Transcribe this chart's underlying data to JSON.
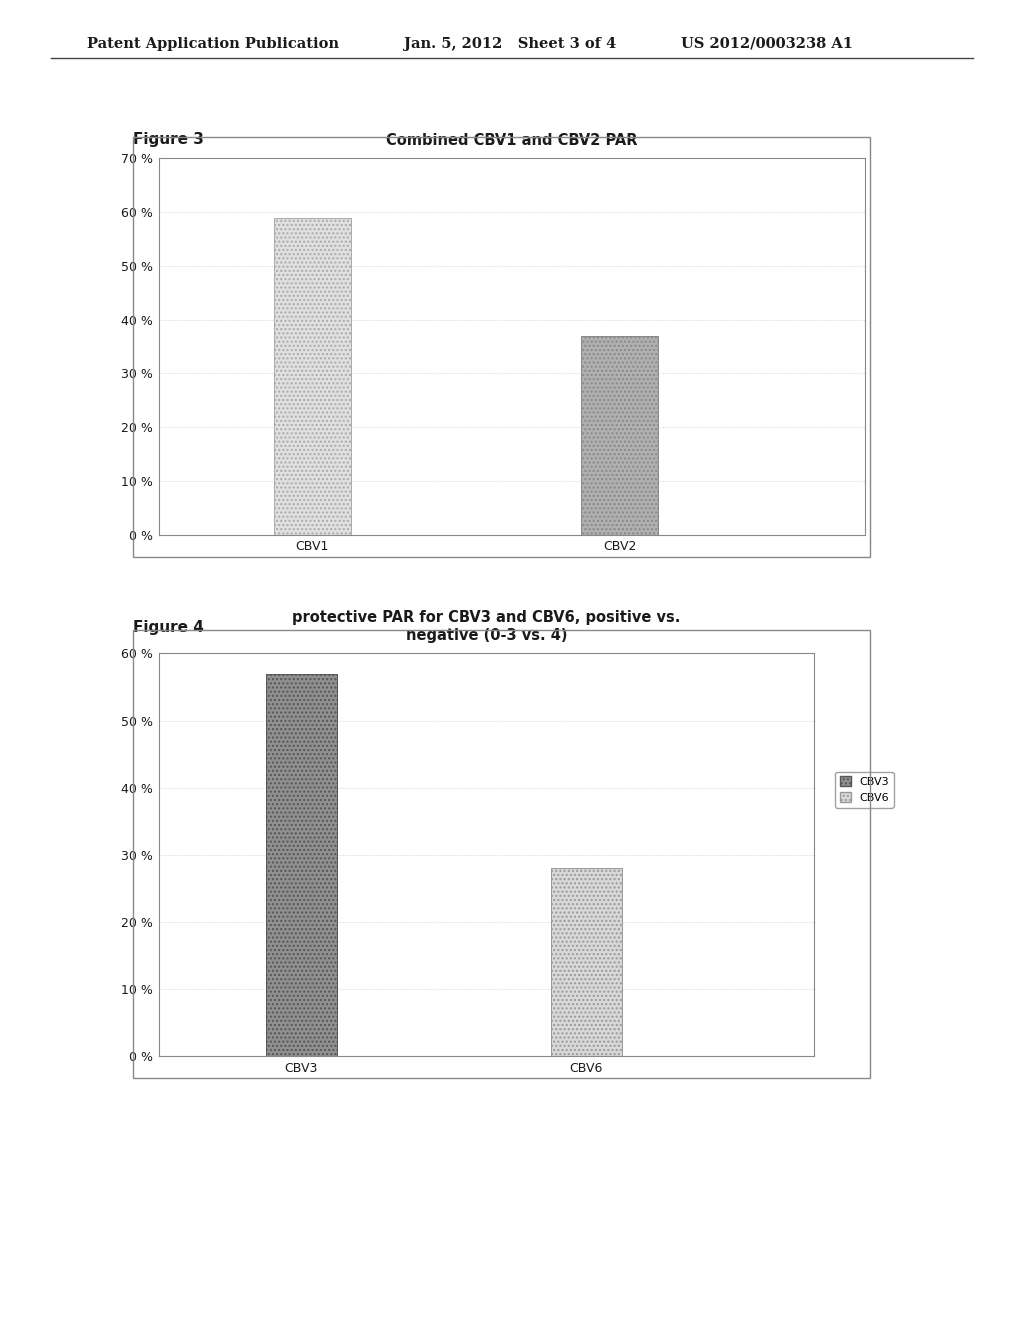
{
  "header_left": "Patent Application Publication",
  "header_mid": "Jan. 5, 2012   Sheet 3 of 4",
  "header_right": "US 2012/0003238 A1",
  "fig3_label": "Figure 3",
  "fig3_title": "Combined CBV1 and CBV2 PAR",
  "fig3_categories": [
    "CBV1",
    "CBV2"
  ],
  "fig3_values": [
    0.59,
    0.37
  ],
  "fig3_bar_color1": "#e0e0e0",
  "fig3_bar_color2": "#b0b0b0",
  "fig3_bar_edge1": "#aaaaaa",
  "fig3_bar_edge2": "#888888",
  "fig3_hatch1": "....",
  "fig3_hatch2": "....",
  "fig3_ylim": [
    0,
    0.7
  ],
  "fig3_yticks": [
    0.0,
    0.1,
    0.2,
    0.3,
    0.4,
    0.5,
    0.6,
    0.7
  ],
  "fig4_label": "Figure 4",
  "fig4_title_line1": "protective PAR for CBV3 and CBV6, positive vs.",
  "fig4_title_line2": "negative (0-3 vs. 4)",
  "fig4_categories": [
    "CBV3",
    "CBV6"
  ],
  "fig4_values": [
    0.57,
    0.28
  ],
  "fig4_bar_color1": "#909090",
  "fig4_bar_color2": "#d8d8d8",
  "fig4_bar_edge1": "#555555",
  "fig4_bar_edge2": "#999999",
  "fig4_hatch1": "....",
  "fig4_hatch2": "....",
  "fig4_ylim": [
    0,
    0.6
  ],
  "fig4_yticks": [
    0.0,
    0.1,
    0.2,
    0.3,
    0.4,
    0.5,
    0.6
  ],
  "fig4_legend_labels": [
    "CBV3",
    "CBV6"
  ],
  "fig4_legend_color1": "#909090",
  "fig4_legend_color2": "#d8d8d8",
  "background_color": "#ffffff",
  "grid_color": "#cccccc",
  "border_color": "#888888",
  "text_color": "#1a1a1a",
  "header_fontsize": 10.5,
  "fig_label_fontsize": 11,
  "chart_title_fontsize": 10.5,
  "tick_fontsize": 9,
  "legend_fontsize": 8
}
